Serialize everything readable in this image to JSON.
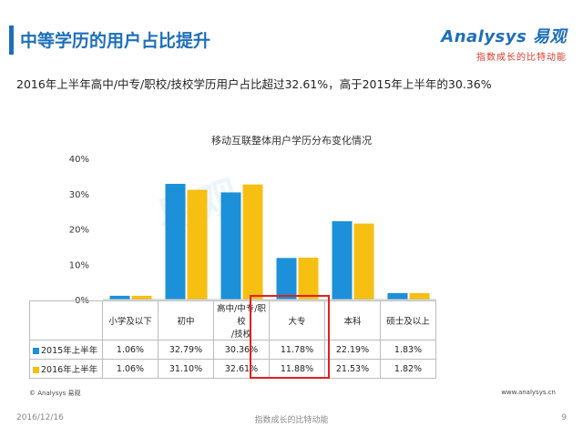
{
  "header": {
    "title": "中等学历的用户占比提升",
    "logo_main": "Analysys 易观",
    "logo_tagline": "指数成长的比特动能",
    "subtitle": "2016年上半年高中/中专/职校/技校学历用户占比超过32.61%，高于2015年上半年的30.36%"
  },
  "watermark": "易观",
  "colors": {
    "series1": "#1c90d8",
    "series2": "#f7bf12",
    "accent": "#1e6fb8",
    "highlight": "#e02020"
  },
  "chart_data": {
    "type": "bar",
    "title": "移动互联整体用户学历分布变化情况",
    "categories": [
      "小学及以下",
      "初中",
      "高中/中专/职校/技校",
      "大专",
      "本科",
      "硕士及以上"
    ],
    "category_lines": [
      [
        "小学及以下"
      ],
      [
        "初中"
      ],
      [
        "高中/中专/职校",
        "/技校"
      ],
      [
        "大专"
      ],
      [
        "本科"
      ],
      [
        "硕士及以上"
      ]
    ],
    "series": [
      {
        "name": "2015年上半年",
        "values": [
          1.06,
          32.79,
          30.36,
          11.78,
          22.19,
          1.83
        ],
        "labels": [
          "1.06%",
          "32.79%",
          "30.36%",
          "11.78%",
          "22.19%",
          "1.83%"
        ]
      },
      {
        "name": "2016年上半年",
        "values": [
          1.06,
          31.1,
          32.61,
          11.88,
          21.53,
          1.82
        ],
        "labels": [
          "1.06%",
          "31.10%",
          "32.61%",
          "11.88%",
          "21.53%",
          "1.82%"
        ]
      }
    ],
    "ylim": [
      0,
      40
    ],
    "yticks": [
      "0%",
      "10%",
      "20%",
      "30%",
      "40%"
    ],
    "grid": false,
    "legend": "data-table-left",
    "highlighted_category": "高中/中专/职校/技校"
  },
  "footer": {
    "copyright": "© Analysys 易观",
    "website": "www.analysys.cn",
    "date": "2016/12/16",
    "tagline": "指数成长的比特动能",
    "page": "9"
  }
}
